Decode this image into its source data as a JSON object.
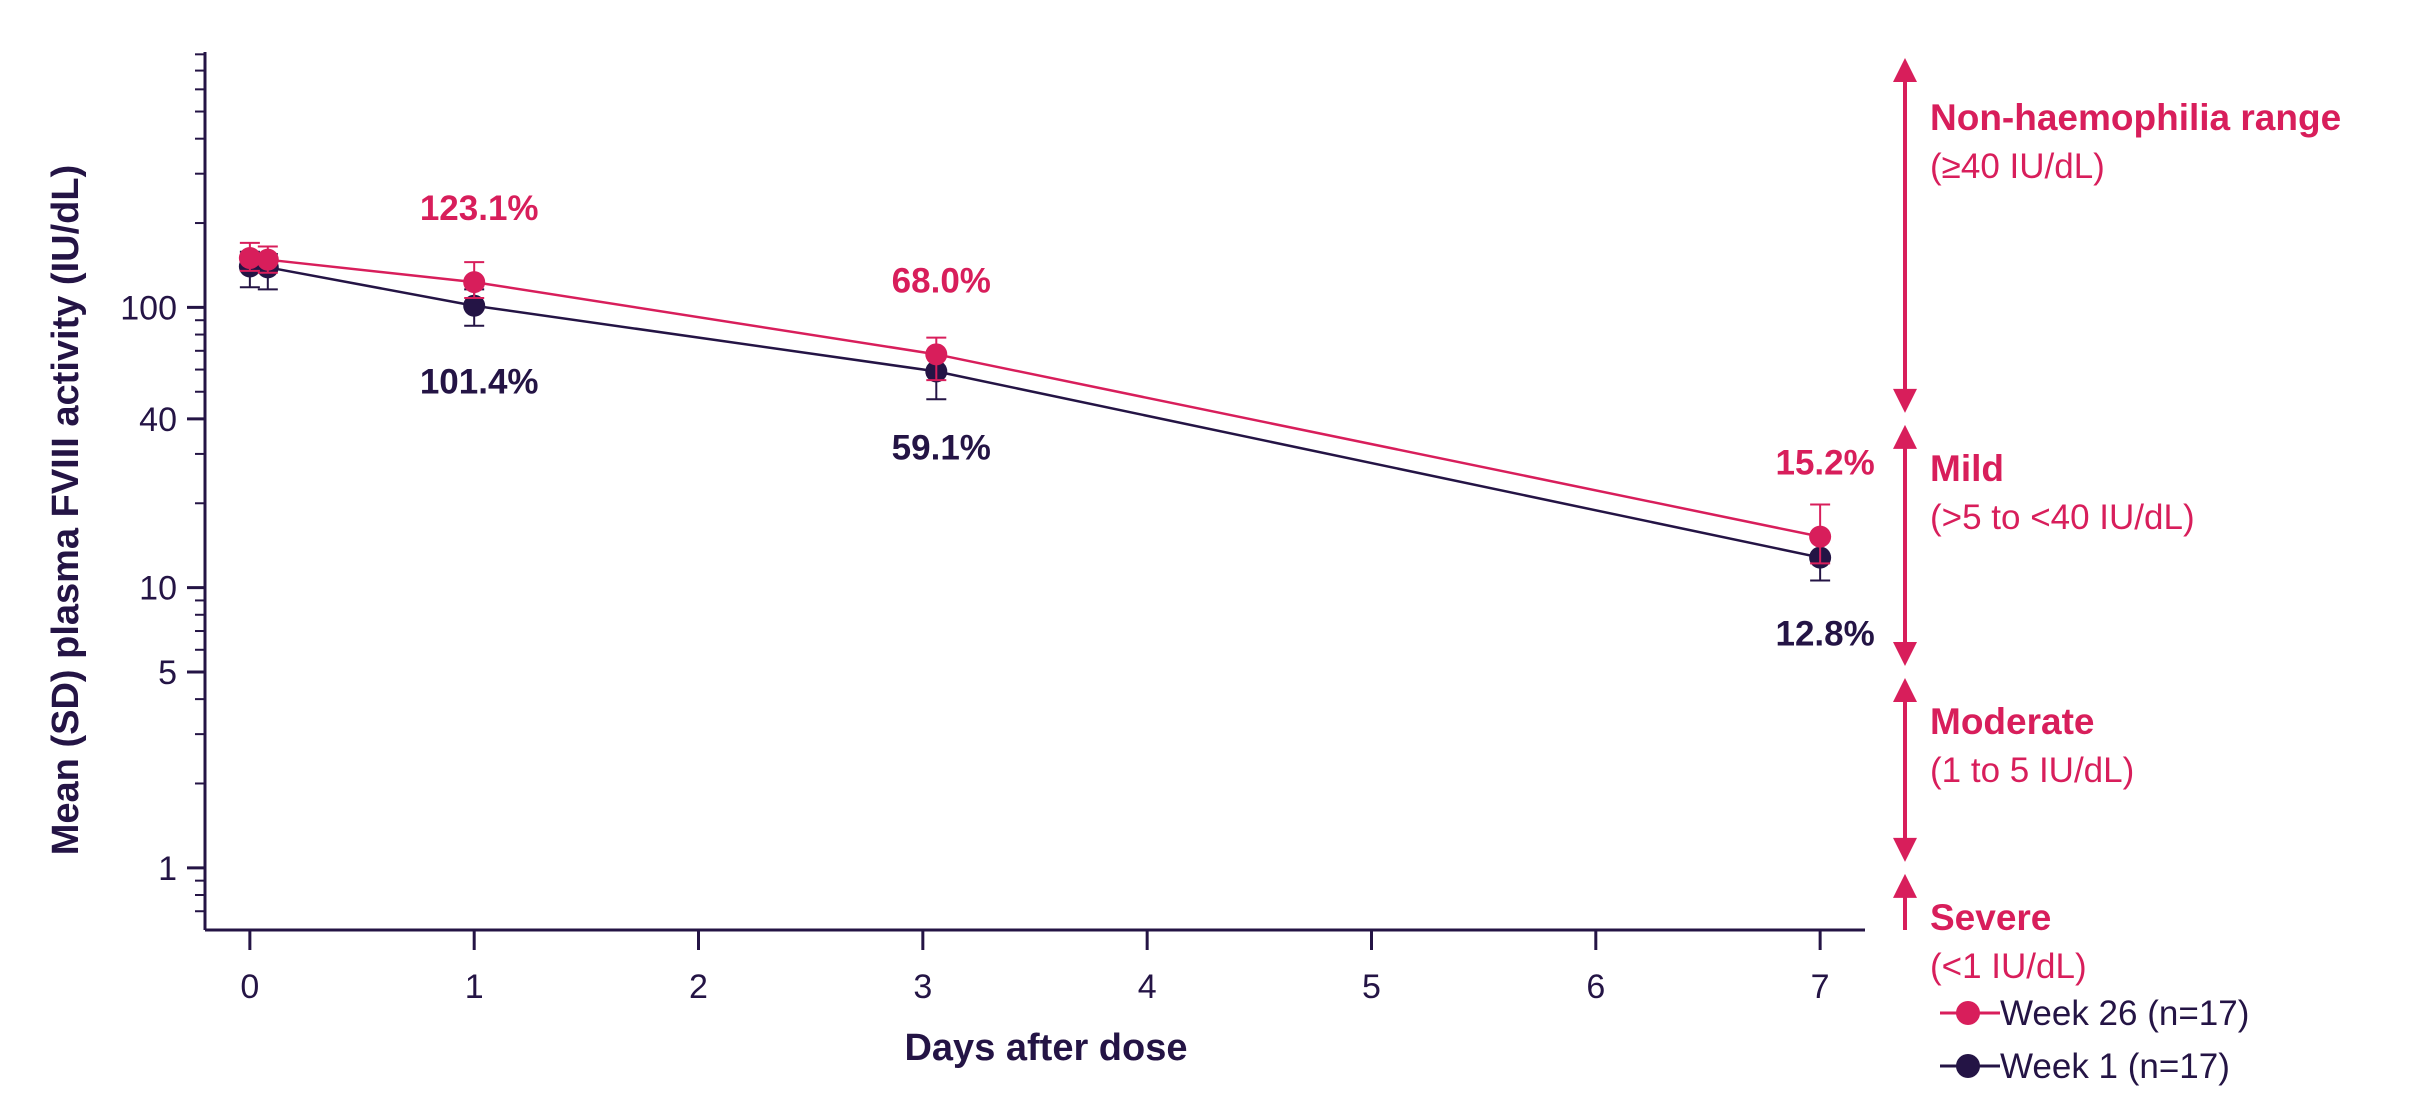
{
  "colors": {
    "week26": "#d81e5b",
    "week1": "#241445",
    "axis": "#241445"
  },
  "chart_data": {
    "type": "line",
    "xlabel": "Days after dose",
    "ylabel": "Mean (SD) plasma FVIII activity (IU/dL)",
    "x_ticks": [
      "0",
      "1",
      "2",
      "3",
      "4",
      "5",
      "6",
      "7"
    ],
    "xlim": [
      -0.2,
      7.2
    ],
    "y_scale": "log",
    "ylim": [
      0.6,
      900
    ],
    "y_ticks": [
      "1",
      "5",
      "10",
      "40",
      "100"
    ],
    "y_tick_values": [
      1,
      5,
      10,
      40,
      100
    ],
    "legend_position": "bottom-right",
    "series": [
      {
        "name": "Week 26 (n=17)",
        "color": "#d81e5b",
        "points": [
          {
            "x": 0.0,
            "y": 150,
            "sd_low": 135,
            "sd_high": 170
          },
          {
            "x": 0.08,
            "y": 148,
            "sd_low": 133,
            "sd_high": 165
          },
          {
            "x": 1.0,
            "y": 123.1,
            "sd_low": 108,
            "sd_high": 145
          },
          {
            "x": 3.06,
            "y": 68.0,
            "sd_low": 55,
            "sd_high": 78
          },
          {
            "x": 7.0,
            "y": 15.2,
            "sd_low": 12.2,
            "sd_high": 19.8
          }
        ],
        "labels": [
          {
            "x": 1.0,
            "y": 123.1,
            "text": "123.1%",
            "position": "above"
          },
          {
            "x": 3.06,
            "y": 68.0,
            "text": "68.0%",
            "position": "above"
          },
          {
            "x": 7.0,
            "y": 15.2,
            "text": "15.2%",
            "position": "above"
          }
        ]
      },
      {
        "name": "Week 1 (n=17)",
        "color": "#241445",
        "points": [
          {
            "x": 0.0,
            "y": 140,
            "sd_low": 118,
            "sd_high": 158
          },
          {
            "x": 0.08,
            "y": 139,
            "sd_low": 116,
            "sd_high": 155
          },
          {
            "x": 1.0,
            "y": 101.4,
            "sd_low": 86,
            "sd_high": 116
          },
          {
            "x": 3.06,
            "y": 59.1,
            "sd_low": 47,
            "sd_high": 68
          },
          {
            "x": 7.0,
            "y": 12.8,
            "sd_low": 10.6,
            "sd_high": 15.6
          }
        ],
        "labels": [
          {
            "x": 1.0,
            "y": 101.4,
            "text": "101.4%",
            "position": "below"
          },
          {
            "x": 3.06,
            "y": 59.1,
            "text": "59.1%",
            "position": "below"
          },
          {
            "x": 7.0,
            "y": 12.8,
            "text": "12.8%",
            "position": "below"
          }
        ]
      }
    ],
    "severity_bands": [
      {
        "name": "Non-haemophilia range",
        "range": "(≥40 IU/dL)",
        "from": 40,
        "to": 900,
        "arrow_top": true
      },
      {
        "name": "Mild",
        "range": "(>5 to <40 IU/dL)",
        "from": 5,
        "to": 40,
        "arrow_top": true
      },
      {
        "name": "Moderate",
        "range": "(1 to 5 IU/dL)",
        "from": 1,
        "to": 5,
        "arrow_top": true
      },
      {
        "name": "Severe",
        "range": "(<1 IU/dL)",
        "from": 0.6,
        "to": 1,
        "arrow_top": true
      }
    ]
  }
}
